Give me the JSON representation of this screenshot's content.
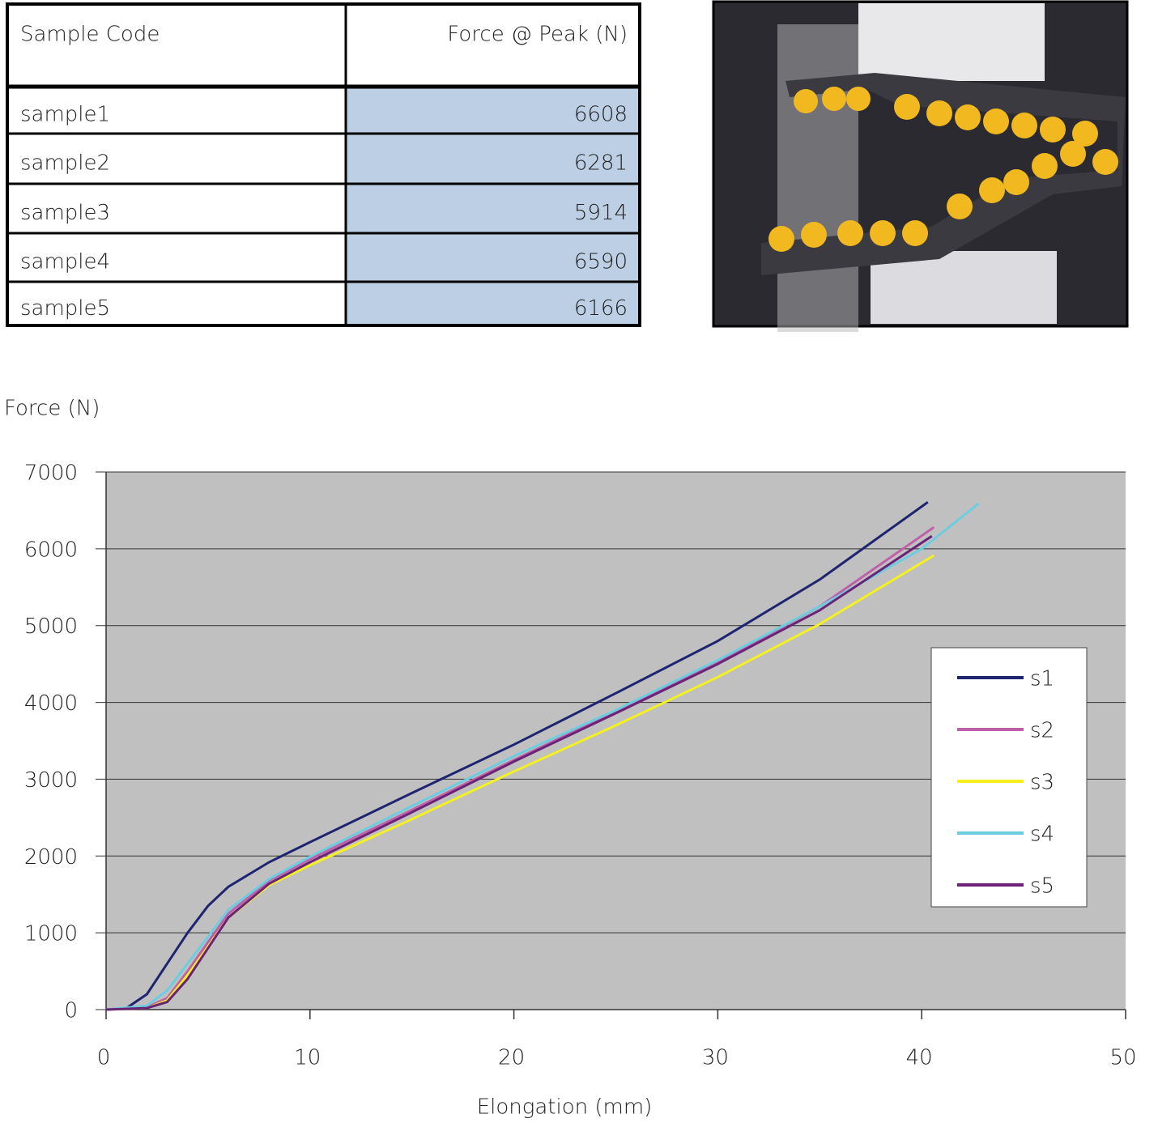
{
  "table": {
    "header": [
      "Sample Code",
      "Force @ Peak (N)"
    ],
    "rows": [
      [
        "sample1",
        6608
      ],
      [
        "sample2",
        6281
      ],
      [
        "sample3",
        5914
      ],
      [
        "sample4",
        6590
      ],
      [
        "sample5",
        6166
      ]
    ]
  },
  "chart_data": {
    "type": "line",
    "y_label": "Force (N)",
    "x_label": "Elongation (mm)",
    "xlim": [
      0,
      50
    ],
    "xticks": [
      0,
      10,
      20,
      30,
      40,
      50
    ],
    "ylim": [
      0,
      7000
    ],
    "yticks": [
      0,
      1000,
      2000,
      3000,
      4000,
      5000,
      6000,
      7000
    ],
    "grid": true,
    "legend": "right",
    "series": [
      {
        "name": "s1",
        "color": "#1f2470",
        "x": [
          0,
          1,
          2,
          3,
          4,
          5,
          6,
          8,
          10,
          15,
          20,
          25,
          30,
          35,
          40.3
        ],
        "values": [
          0,
          20,
          200,
          600,
          1000,
          1350,
          1600,
          1920,
          2180,
          2820,
          3450,
          4120,
          4800,
          5600,
          6608
        ]
      },
      {
        "name": "s2",
        "color": "#c060a8",
        "x": [
          0,
          2,
          3,
          4,
          5,
          6,
          8,
          10,
          15,
          20,
          25,
          30,
          35,
          40.6
        ],
        "values": [
          0,
          30,
          150,
          500,
          880,
          1250,
          1680,
          1960,
          2600,
          3250,
          3880,
          4520,
          5250,
          6281
        ]
      },
      {
        "name": "s3",
        "color": "#f5f01e",
        "x": [
          0,
          2,
          3,
          4,
          5,
          6,
          8,
          10,
          15,
          20,
          25,
          30,
          35,
          40.6
        ],
        "values": [
          0,
          20,
          120,
          450,
          820,
          1200,
          1620,
          1880,
          2480,
          3100,
          3700,
          4330,
          5020,
          5914
        ]
      },
      {
        "name": "s4",
        "color": "#6dcde0",
        "x": [
          0,
          2,
          3,
          4,
          5,
          6,
          8,
          10,
          15,
          20,
          25,
          30,
          35,
          40,
          42.8
        ],
        "values": [
          0,
          50,
          250,
          600,
          950,
          1300,
          1700,
          1990,
          2650,
          3300,
          3900,
          4550,
          5250,
          6000,
          6590
        ]
      },
      {
        "name": "s5",
        "color": "#6a2377",
        "x": [
          0,
          2,
          3,
          4,
          5,
          6,
          8,
          10,
          15,
          20,
          25,
          30,
          35,
          40.5
        ],
        "values": [
          0,
          20,
          100,
          400,
          800,
          1200,
          1640,
          1920,
          2570,
          3230,
          3860,
          4500,
          5200,
          6166
        ]
      }
    ]
  }
}
